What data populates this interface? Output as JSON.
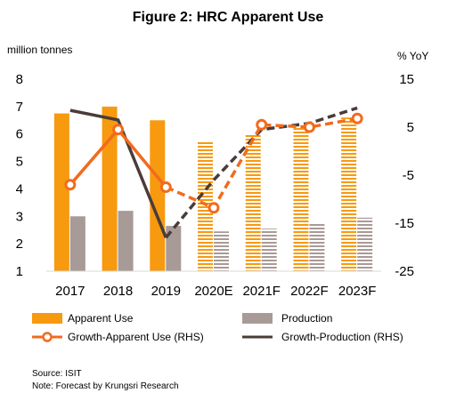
{
  "chart_data": {
    "type": "bar",
    "title": "Figure 2: HRC Apparent Use",
    "ylabel": "million tonnes",
    "y2label": "% YoY",
    "ylim": [
      1,
      8
    ],
    "y2lim": [
      -25,
      15
    ],
    "yticks": [
      "1",
      "2",
      "3",
      "4",
      "5",
      "6",
      "7",
      "8"
    ],
    "y2ticks": [
      "-25",
      "-15",
      "-5",
      "5",
      "15"
    ],
    "categories": [
      "2017",
      "2018",
      "2019",
      "2020E",
      "2021F",
      "2022F",
      "2023F"
    ],
    "forecast_from_index": 3,
    "series": [
      {
        "name": "Apparent Use",
        "kind": "bar",
        "axis": "left",
        "color": "#f79a0f",
        "values": [
          6.75,
          7.0,
          6.5,
          5.7,
          6.0,
          6.25,
          6.6
        ]
      },
      {
        "name": "Production",
        "kind": "bar",
        "axis": "left",
        "color": "#a89a96",
        "values": [
          3.0,
          3.2,
          2.65,
          2.45,
          2.55,
          2.75,
          2.95
        ]
      },
      {
        "name": "Growth-Apparent Use (RHS)",
        "kind": "line",
        "axis": "right",
        "color": "#f26b1d",
        "values": [
          -7.0,
          4.5,
          -7.5,
          -11.8,
          5.5,
          5.0,
          6.8
        ]
      },
      {
        "name": "Growth-Production (RHS)",
        "kind": "line",
        "axis": "right",
        "color": "#4a3c38",
        "values": [
          8.5,
          6.5,
          -18.0,
          -6.0,
          4.5,
          5.8,
          9.0
        ]
      }
    ],
    "grid": false,
    "legend": "bottom"
  },
  "footer": {
    "source": "Source: ISIT",
    "note": "Note: Forecast by Krungsri Research"
  }
}
